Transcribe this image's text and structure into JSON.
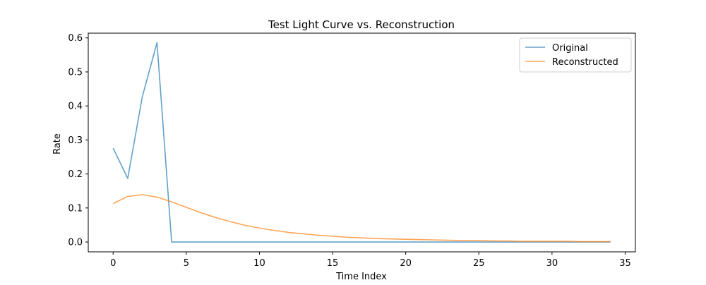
{
  "chart_data": {
    "type": "line",
    "title": "Test Light Curve vs. Reconstruction",
    "xlabel": "Time Index",
    "ylabel": "Rate",
    "xlim": [
      -1.7,
      35.7
    ],
    "ylim": [
      -0.029,
      0.614
    ],
    "xticks": [
      0,
      5,
      10,
      15,
      20,
      25,
      30,
      35
    ],
    "yticks": [
      0.0,
      0.1,
      0.2,
      0.3,
      0.4,
      0.5,
      0.6
    ],
    "xtick_labels": [
      "0",
      "5",
      "10",
      "15",
      "20",
      "25",
      "30",
      "35"
    ],
    "ytick_labels": [
      "0.0",
      "0.1",
      "0.2",
      "0.3",
      "0.4",
      "0.5",
      "0.6"
    ],
    "grid": false,
    "legend_position": "top-right",
    "series": [
      {
        "name": "Original",
        "color": "#1f77b4",
        "x": [
          0,
          1,
          2,
          3,
          4,
          5,
          6,
          7,
          8,
          9,
          10,
          11,
          12,
          13,
          14,
          15,
          16,
          17,
          18,
          19,
          20,
          21,
          22,
          23,
          24,
          25,
          26,
          27,
          28,
          29,
          30,
          31,
          32,
          33,
          34
        ],
        "values": [
          0.276,
          0.187,
          0.428,
          0.586,
          0.0,
          0.0,
          0.0,
          0.0,
          0.0,
          0.0,
          0.0,
          0.0,
          0.0,
          0.0,
          0.0,
          0.0,
          0.0,
          0.0,
          0.0,
          0.0,
          0.0,
          0.0,
          0.0,
          0.0,
          0.0,
          0.0,
          0.0,
          0.0,
          0.0,
          0.0,
          0.0,
          0.0,
          0.0,
          0.0,
          0.0
        ]
      },
      {
        "name": "Reconstructed",
        "color": "#ff7f0e",
        "x": [
          0,
          1,
          2,
          3,
          4,
          5,
          6,
          7,
          8,
          9,
          10,
          11,
          12,
          13,
          14,
          15,
          16,
          17,
          18,
          19,
          20,
          21,
          22,
          23,
          24,
          25,
          26,
          27,
          28,
          29,
          30,
          31,
          32,
          33,
          34
        ],
        "values": [
          0.113,
          0.134,
          0.139,
          0.132,
          0.118,
          0.102,
          0.086,
          0.072,
          0.06,
          0.049,
          0.041,
          0.034,
          0.028,
          0.024,
          0.02,
          0.017,
          0.014,
          0.012,
          0.01,
          0.009,
          0.008,
          0.007,
          0.006,
          0.005,
          0.004,
          0.004,
          0.003,
          0.003,
          0.002,
          0.002,
          0.002,
          0.002,
          0.001,
          0.001,
          0.001
        ]
      }
    ]
  }
}
